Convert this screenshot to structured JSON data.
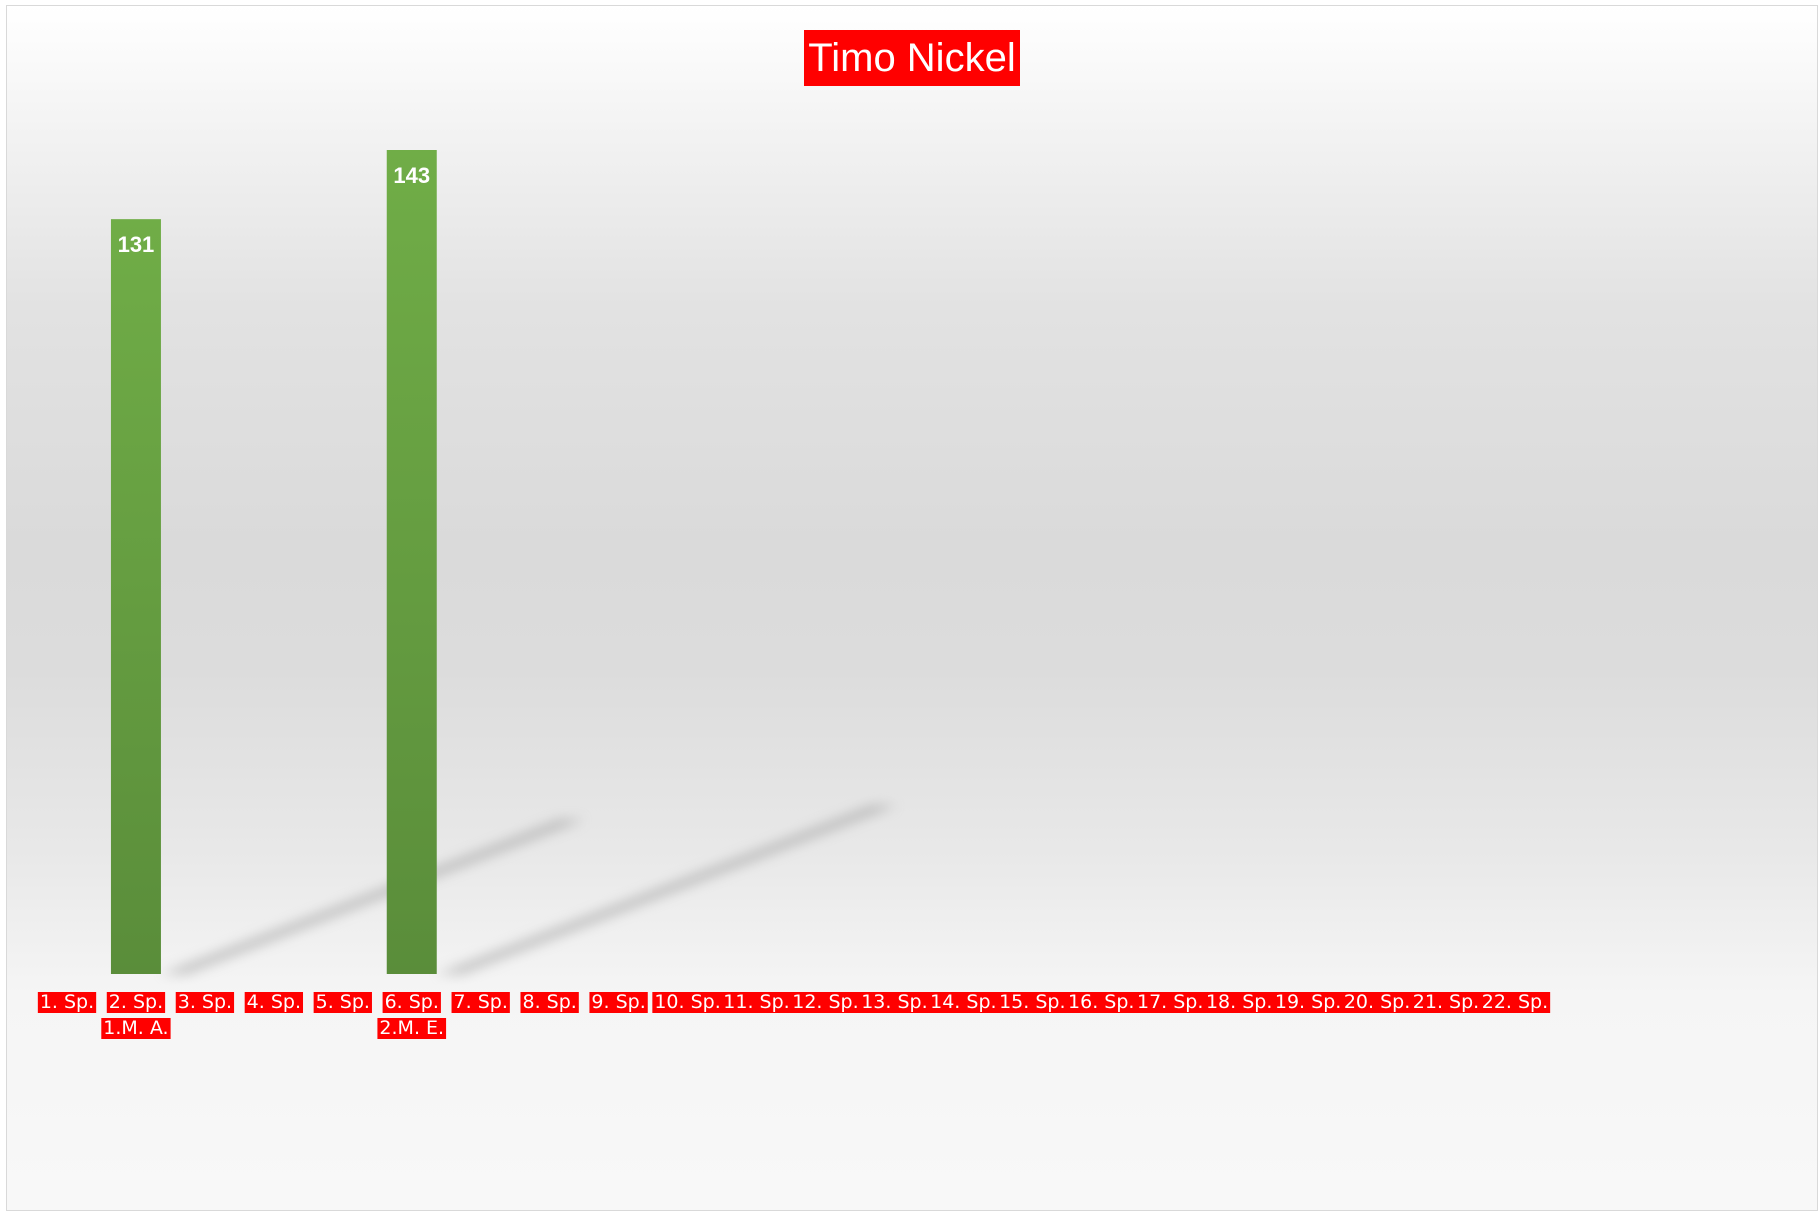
{
  "chart_data": {
    "type": "bar",
    "title": "Timo Nickel",
    "categories": [
      "1. Sp.",
      "2. Sp.",
      "3. Sp.",
      "4. Sp.",
      "5. Sp.",
      "6. Sp.",
      "7. Sp.",
      "8. Sp.",
      "9. Sp.",
      "10. Sp.",
      "11. Sp.",
      "12. Sp.",
      "13. Sp.",
      "14. Sp.",
      "15. Sp.",
      "16. Sp.",
      "17. Sp.",
      "18. Sp.",
      "19. Sp.",
      "20. Sp.",
      "21. Sp.",
      "22. Sp."
    ],
    "sublabels": [
      "",
      "1.M. A.",
      "",
      "",
      "",
      "2.M. E.",
      "",
      "",
      "",
      "",
      "",
      "",
      "",
      "",
      "",
      "",
      "",
      "",
      "",
      "",
      "",
      ""
    ],
    "values": [
      null,
      131,
      null,
      null,
      null,
      143,
      null,
      null,
      null,
      null,
      null,
      null,
      null,
      null,
      null,
      null,
      null,
      null,
      null,
      null,
      null,
      null
    ],
    "ylim": [
      0,
      155
    ],
    "xlabel": "",
    "ylabel": "",
    "grid": false,
    "legend": "none",
    "colors": {
      "bar_top": "#70ad47",
      "bar_bottom": "#5a8d3a",
      "label_background": "#ff0000",
      "label_text": "#ffffff"
    }
  }
}
